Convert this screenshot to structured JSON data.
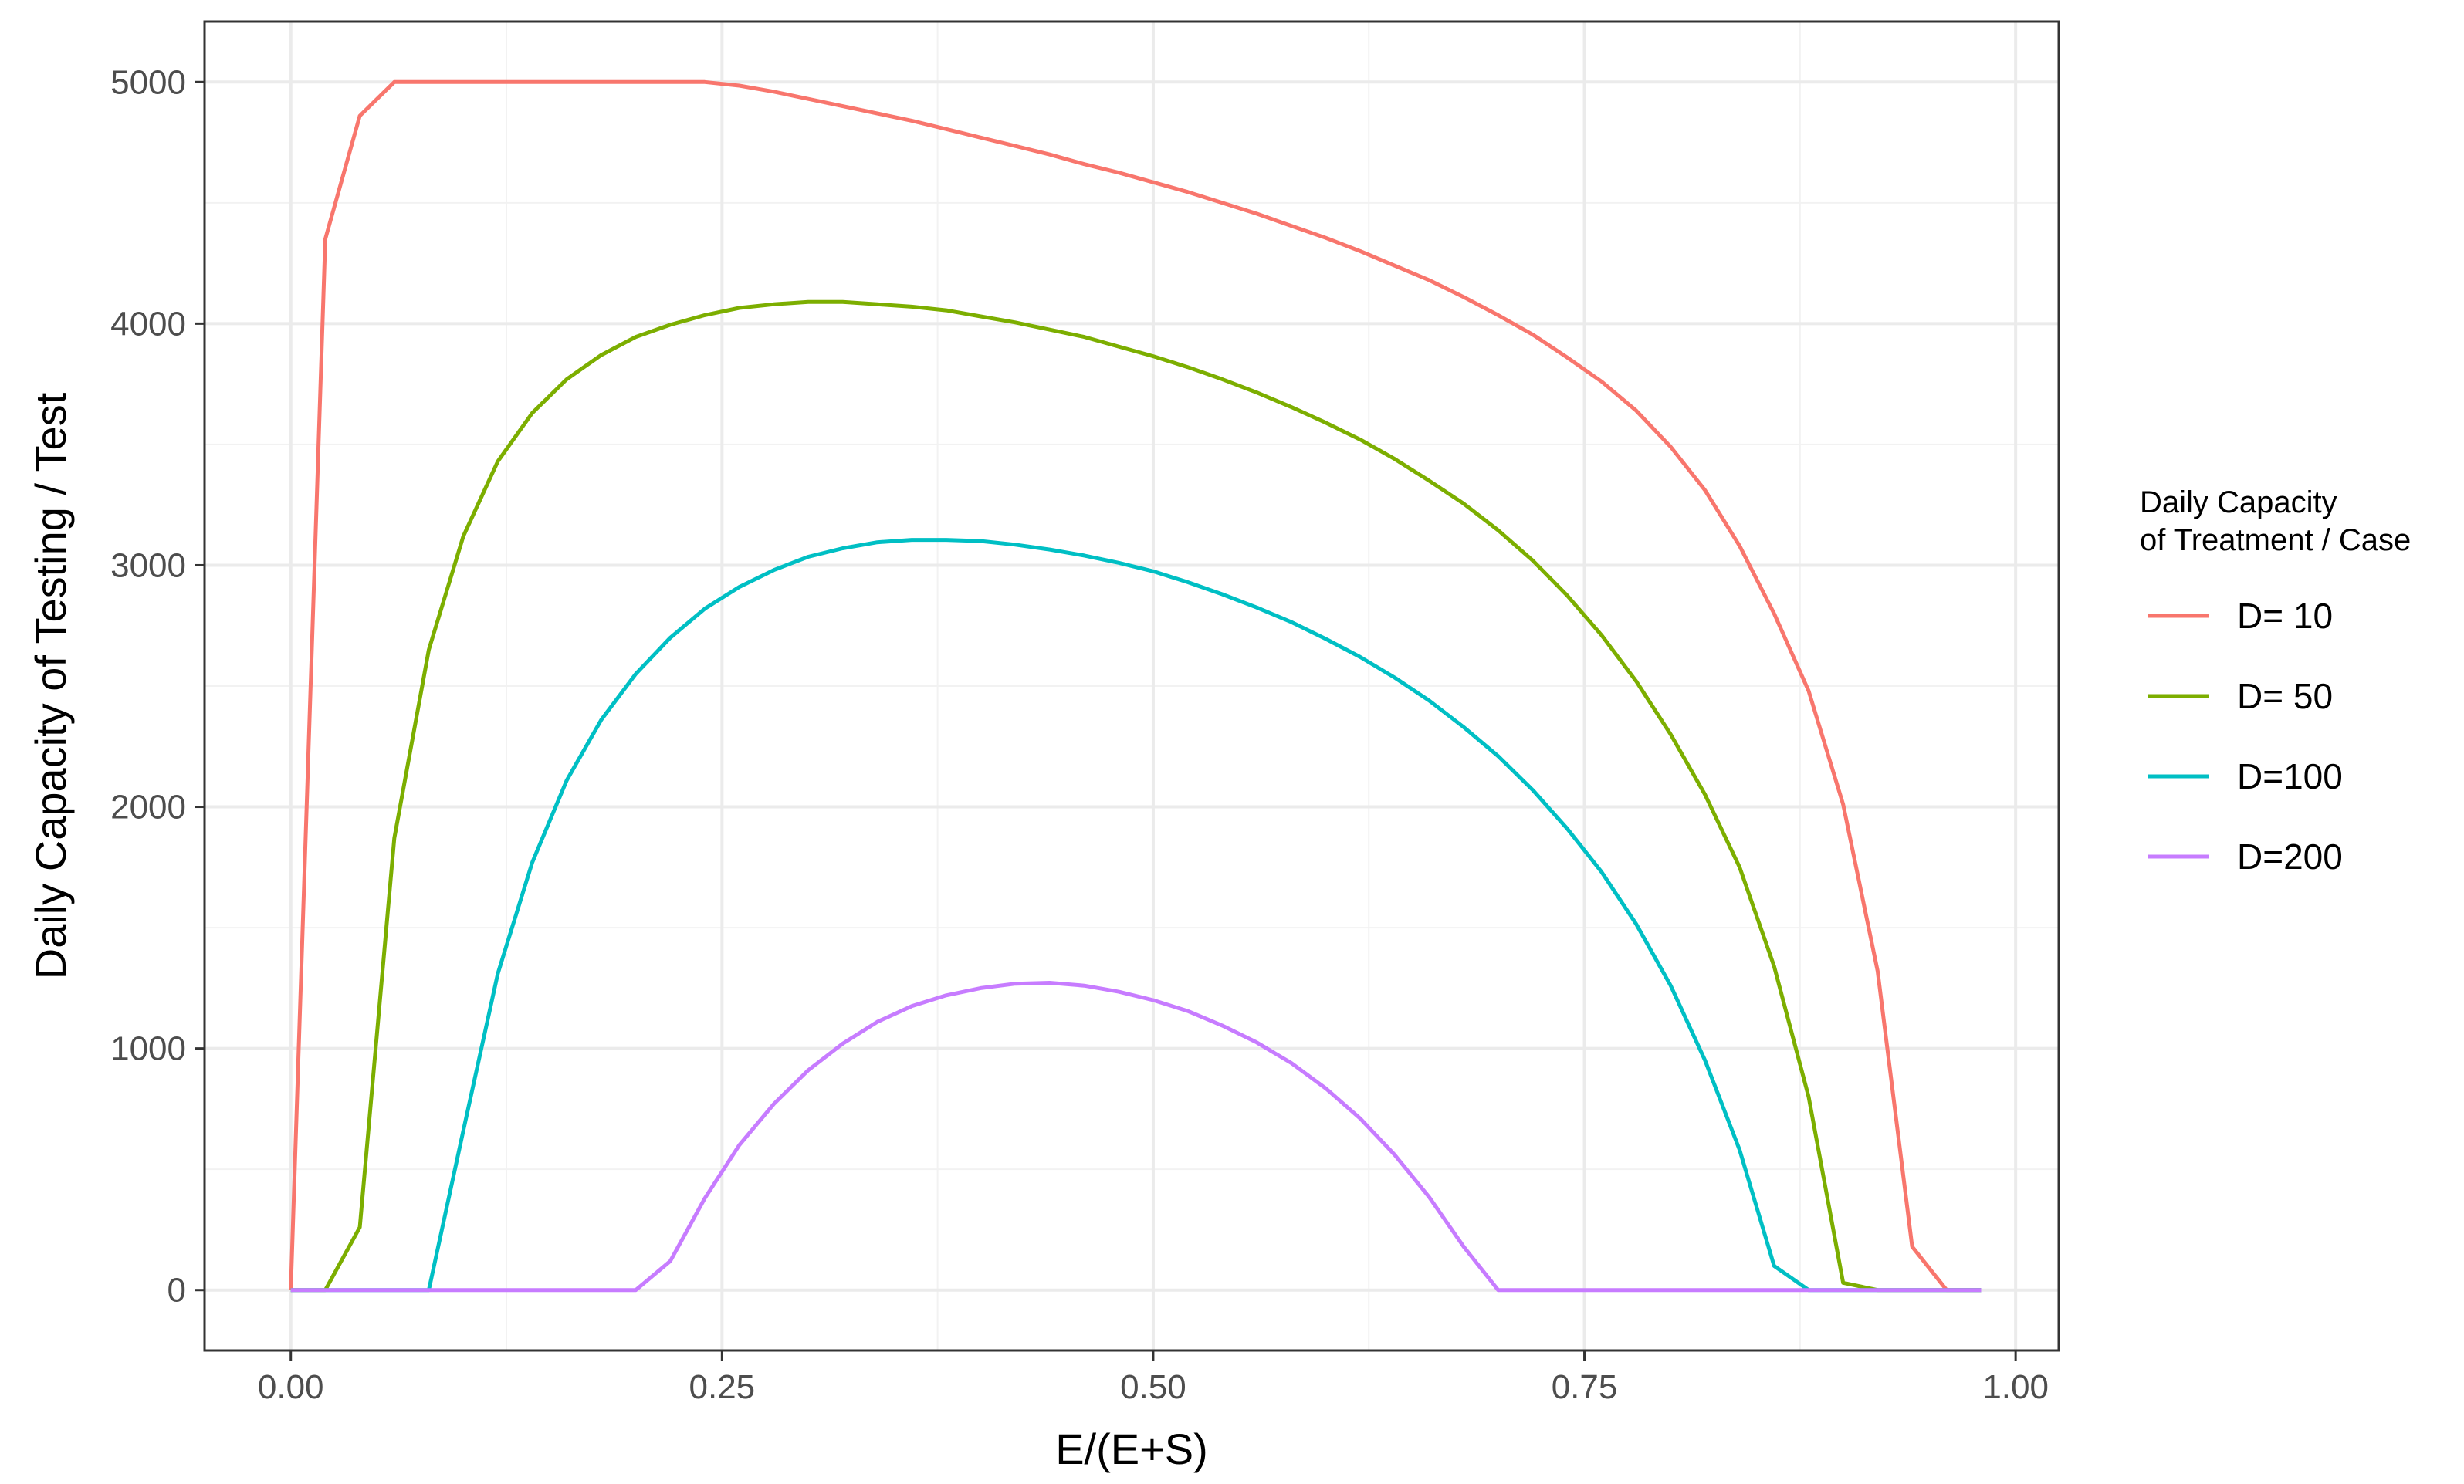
{
  "chart_data": {
    "type": "line",
    "title": "",
    "xlabel": "E/(E+S)",
    "ylabel": "Daily Capacity of Testing / Test",
    "xlim": [
      -0.05,
      1.025
    ],
    "ylim": [
      -250,
      5250
    ],
    "x_ticks": [
      0.0,
      0.25,
      0.5,
      0.75,
      1.0
    ],
    "x_tick_labels": [
      "0.00",
      "0.25",
      "0.50",
      "0.75",
      "1.00"
    ],
    "y_ticks": [
      0,
      1000,
      2000,
      3000,
      4000,
      5000
    ],
    "y_tick_labels": [
      "0",
      "1000",
      "2000",
      "3000",
      "4000",
      "5000"
    ],
    "grid": true,
    "legend": {
      "title_lines": [
        "Daily Capacity",
        "of Treatment / Case"
      ],
      "placement": "right"
    },
    "series": [
      {
        "name": "D= 10",
        "color": "#F8766D",
        "points": [
          [
            0.0,
            0
          ],
          [
            0.02,
            4350
          ],
          [
            0.04,
            4860
          ],
          [
            0.06,
            5000
          ],
          [
            0.08,
            5000
          ],
          [
            0.1,
            5000
          ],
          [
            0.12,
            5000
          ],
          [
            0.14,
            5000
          ],
          [
            0.16,
            5000
          ],
          [
            0.18,
            5000
          ],
          [
            0.2,
            5000
          ],
          [
            0.22,
            5000
          ],
          [
            0.24,
            5000
          ],
          [
            0.26,
            4985
          ],
          [
            0.28,
            4960
          ],
          [
            0.3,
            4930
          ],
          [
            0.32,
            4900
          ],
          [
            0.34,
            4870
          ],
          [
            0.36,
            4840
          ],
          [
            0.38,
            4805
          ],
          [
            0.4,
            4770
          ],
          [
            0.42,
            4735
          ],
          [
            0.44,
            4700
          ],
          [
            0.46,
            4660
          ],
          [
            0.48,
            4625
          ],
          [
            0.5,
            4585
          ],
          [
            0.52,
            4545
          ],
          [
            0.54,
            4500
          ],
          [
            0.56,
            4455
          ],
          [
            0.58,
            4405
          ],
          [
            0.6,
            4355
          ],
          [
            0.62,
            4300
          ],
          [
            0.64,
            4240
          ],
          [
            0.66,
            4180
          ],
          [
            0.68,
            4110
          ],
          [
            0.7,
            4035
          ],
          [
            0.72,
            3955
          ],
          [
            0.74,
            3860
          ],
          [
            0.76,
            3760
          ],
          [
            0.78,
            3640
          ],
          [
            0.8,
            3490
          ],
          [
            0.82,
            3310
          ],
          [
            0.84,
            3080
          ],
          [
            0.86,
            2800
          ],
          [
            0.88,
            2480
          ],
          [
            0.9,
            2010
          ],
          [
            0.92,
            1320
          ],
          [
            0.94,
            180
          ],
          [
            0.96,
            0
          ],
          [
            0.98,
            0
          ]
        ]
      },
      {
        "name": "D= 50",
        "color": "#7CAE00",
        "points": [
          [
            0.0,
            0
          ],
          [
            0.02,
            0
          ],
          [
            0.04,
            260
          ],
          [
            0.06,
            1870
          ],
          [
            0.08,
            2650
          ],
          [
            0.1,
            3120
          ],
          [
            0.12,
            3430
          ],
          [
            0.14,
            3630
          ],
          [
            0.16,
            3770
          ],
          [
            0.18,
            3870
          ],
          [
            0.2,
            3945
          ],
          [
            0.22,
            3995
          ],
          [
            0.24,
            4035
          ],
          [
            0.26,
            4065
          ],
          [
            0.28,
            4080
          ],
          [
            0.3,
            4090
          ],
          [
            0.32,
            4090
          ],
          [
            0.34,
            4080
          ],
          [
            0.36,
            4070
          ],
          [
            0.38,
            4055
          ],
          [
            0.4,
            4030
          ],
          [
            0.42,
            4005
          ],
          [
            0.44,
            3975
          ],
          [
            0.46,
            3945
          ],
          [
            0.48,
            3905
          ],
          [
            0.5,
            3865
          ],
          [
            0.52,
            3820
          ],
          [
            0.54,
            3770
          ],
          [
            0.56,
            3715
          ],
          [
            0.58,
            3655
          ],
          [
            0.6,
            3590
          ],
          [
            0.62,
            3520
          ],
          [
            0.64,
            3440
          ],
          [
            0.66,
            3350
          ],
          [
            0.68,
            3255
          ],
          [
            0.7,
            3145
          ],
          [
            0.72,
            3020
          ],
          [
            0.74,
            2875
          ],
          [
            0.76,
            2710
          ],
          [
            0.78,
            2520
          ],
          [
            0.8,
            2300
          ],
          [
            0.82,
            2050
          ],
          [
            0.84,
            1750
          ],
          [
            0.86,
            1340
          ],
          [
            0.88,
            800
          ],
          [
            0.9,
            30
          ],
          [
            0.92,
            0
          ],
          [
            0.94,
            0
          ],
          [
            0.96,
            0
          ],
          [
            0.98,
            0
          ]
        ]
      },
      {
        "name": "D=100",
        "color": "#00BFC4",
        "points": [
          [
            0.0,
            0
          ],
          [
            0.02,
            0
          ],
          [
            0.04,
            0
          ],
          [
            0.06,
            0
          ],
          [
            0.08,
            0
          ],
          [
            0.1,
            660
          ],
          [
            0.12,
            1310
          ],
          [
            0.14,
            1770
          ],
          [
            0.16,
            2110
          ],
          [
            0.18,
            2360
          ],
          [
            0.2,
            2550
          ],
          [
            0.22,
            2700
          ],
          [
            0.24,
            2820
          ],
          [
            0.26,
            2910
          ],
          [
            0.28,
            2980
          ],
          [
            0.3,
            3035
          ],
          [
            0.32,
            3070
          ],
          [
            0.34,
            3095
          ],
          [
            0.36,
            3105
          ],
          [
            0.38,
            3105
          ],
          [
            0.4,
            3100
          ],
          [
            0.42,
            3085
          ],
          [
            0.44,
            3065
          ],
          [
            0.46,
            3040
          ],
          [
            0.48,
            3010
          ],
          [
            0.5,
            2975
          ],
          [
            0.52,
            2930
          ],
          [
            0.54,
            2880
          ],
          [
            0.56,
            2825
          ],
          [
            0.58,
            2765
          ],
          [
            0.6,
            2695
          ],
          [
            0.62,
            2620
          ],
          [
            0.64,
            2535
          ],
          [
            0.66,
            2440
          ],
          [
            0.68,
            2330
          ],
          [
            0.7,
            2210
          ],
          [
            0.72,
            2070
          ],
          [
            0.74,
            1910
          ],
          [
            0.76,
            1730
          ],
          [
            0.78,
            1515
          ],
          [
            0.8,
            1260
          ],
          [
            0.82,
            950
          ],
          [
            0.84,
            580
          ],
          [
            0.86,
            100
          ],
          [
            0.88,
            0
          ],
          [
            0.9,
            0
          ],
          [
            0.92,
            0
          ],
          [
            0.94,
            0
          ],
          [
            0.96,
            0
          ],
          [
            0.98,
            0
          ]
        ]
      },
      {
        "name": "D=200",
        "color": "#C77CFF",
        "points": [
          [
            0.0,
            0
          ],
          [
            0.02,
            0
          ],
          [
            0.04,
            0
          ],
          [
            0.06,
            0
          ],
          [
            0.08,
            0
          ],
          [
            0.1,
            0
          ],
          [
            0.12,
            0
          ],
          [
            0.14,
            0
          ],
          [
            0.16,
            0
          ],
          [
            0.18,
            0
          ],
          [
            0.2,
            0
          ],
          [
            0.22,
            120
          ],
          [
            0.24,
            380
          ],
          [
            0.26,
            600
          ],
          [
            0.28,
            770
          ],
          [
            0.3,
            910
          ],
          [
            0.32,
            1020
          ],
          [
            0.34,
            1110
          ],
          [
            0.36,
            1175
          ],
          [
            0.38,
            1220
          ],
          [
            0.4,
            1250
          ],
          [
            0.42,
            1268
          ],
          [
            0.44,
            1272
          ],
          [
            0.46,
            1260
          ],
          [
            0.48,
            1235
          ],
          [
            0.5,
            1200
          ],
          [
            0.52,
            1155
          ],
          [
            0.54,
            1095
          ],
          [
            0.56,
            1025
          ],
          [
            0.58,
            940
          ],
          [
            0.6,
            835
          ],
          [
            0.62,
            710
          ],
          [
            0.64,
            560
          ],
          [
            0.66,
            385
          ],
          [
            0.68,
            180
          ],
          [
            0.7,
            0
          ],
          [
            0.72,
            0
          ],
          [
            0.74,
            0
          ],
          [
            0.76,
            0
          ],
          [
            0.78,
            0
          ],
          [
            0.8,
            0
          ],
          [
            0.82,
            0
          ],
          [
            0.84,
            0
          ],
          [
            0.86,
            0
          ],
          [
            0.88,
            0
          ],
          [
            0.9,
            0
          ],
          [
            0.92,
            0
          ],
          [
            0.94,
            0
          ],
          [
            0.96,
            0
          ],
          [
            0.98,
            0
          ]
        ]
      }
    ]
  }
}
